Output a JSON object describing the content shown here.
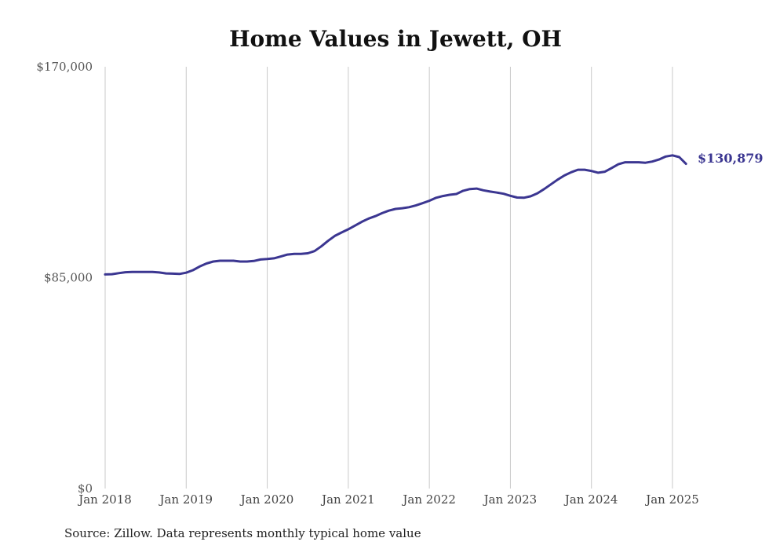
{
  "chart_data": {
    "type": "line",
    "title": "Home Values in Jewett, OH",
    "xlabel": "",
    "ylabel": "",
    "x_ticks": [
      "Jan 2018",
      "Jan 2019",
      "Jan 2020",
      "Jan 2021",
      "Jan 2022",
      "Jan 2023",
      "Jan 2024",
      "Jan 2025"
    ],
    "y_ticks": [
      "$0",
      "$85,000",
      "$170,000"
    ],
    "ylim": [
      0,
      170000
    ],
    "xlim": [
      "2018-01",
      "2025-03"
    ],
    "grid": "vertical",
    "legend": "none",
    "colors": {
      "line": "#3b3691",
      "grid": "#c8c8c8"
    },
    "end_label": "$130,879",
    "source": "Source: Zillow. Data represents monthly typical home value",
    "series": [
      {
        "x": [
          "2018-01",
          "2018-02",
          "2018-03",
          "2018-04",
          "2018-05",
          "2018-06",
          "2018-07",
          "2018-08",
          "2018-09",
          "2018-10",
          "2018-11",
          "2018-12",
          "2019-01",
          "2019-02",
          "2019-03",
          "2019-04",
          "2019-05",
          "2019-06",
          "2019-07",
          "2019-08",
          "2019-09",
          "2019-10",
          "2019-11",
          "2019-12",
          "2020-01",
          "2020-02",
          "2020-03",
          "2020-04",
          "2020-05",
          "2020-06",
          "2020-07",
          "2020-08",
          "2020-09",
          "2020-10",
          "2020-11",
          "2020-12",
          "2021-01",
          "2021-02",
          "2021-03",
          "2021-04",
          "2021-05",
          "2021-06",
          "2021-07",
          "2021-08",
          "2021-09",
          "2021-10",
          "2021-11",
          "2021-12",
          "2022-01",
          "2022-02",
          "2022-03",
          "2022-04",
          "2022-05",
          "2022-06",
          "2022-07",
          "2022-08",
          "2022-09",
          "2022-10",
          "2022-11",
          "2022-12",
          "2023-01",
          "2023-02",
          "2023-03",
          "2023-04",
          "2023-05",
          "2023-06",
          "2023-07",
          "2023-08",
          "2023-09",
          "2023-10",
          "2023-11",
          "2023-12",
          "2024-01",
          "2024-02",
          "2024-03",
          "2024-04",
          "2024-05",
          "2024-06",
          "2024-07",
          "2024-08",
          "2024-09",
          "2024-10",
          "2024-11",
          "2024-12",
          "2025-01",
          "2025-02",
          "2025-03"
        ],
        "values": [
          86300,
          86400,
          86800,
          87200,
          87300,
          87300,
          87300,
          87300,
          87100,
          86700,
          86600,
          86500,
          87000,
          88000,
          89500,
          90700,
          91500,
          91800,
          91800,
          91800,
          91500,
          91500,
          91700,
          92300,
          92500,
          92800,
          93500,
          94300,
          94600,
          94600,
          94800,
          95700,
          97600,
          99800,
          101800,
          103200,
          104500,
          106000,
          107500,
          108800,
          109800,
          111000,
          112000,
          112700,
          113000,
          113400,
          114100,
          115000,
          116000,
          117200,
          117900,
          118400,
          118700,
          120000,
          120700,
          120900,
          120200,
          119700,
          119300,
          118800,
          118000,
          117300,
          117200,
          117800,
          119000,
          120700,
          122600,
          124500,
          126200,
          127500,
          128500,
          128500,
          128000,
          127300,
          127700,
          129200,
          130700,
          131500,
          131500,
          131500,
          131300,
          131800,
          132600,
          133800,
          134300,
          133600,
          130879
        ]
      }
    ]
  }
}
